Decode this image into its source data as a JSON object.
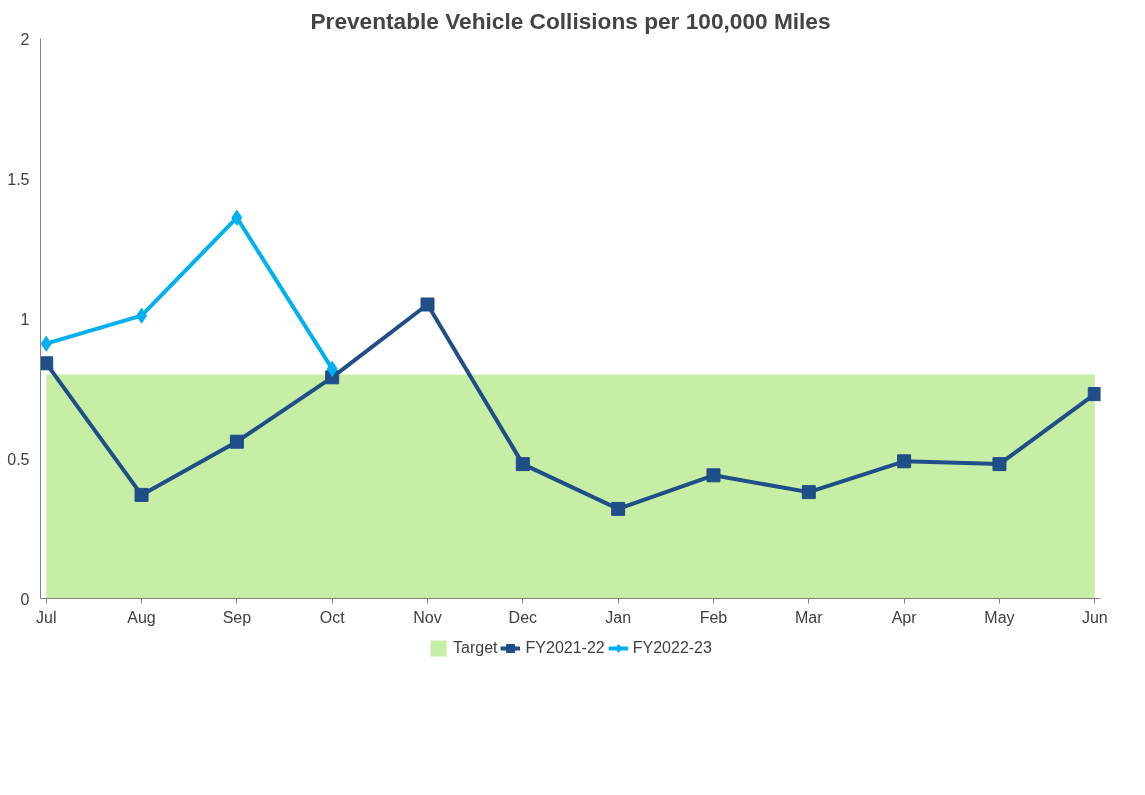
{
  "chart_data": {
    "type": "line",
    "title": "Preventable Vehicle Collisions per 100,000 Miles",
    "categories": [
      "Jul",
      "Aug",
      "Sep",
      "Oct",
      "Nov",
      "Dec",
      "Jan",
      "Feb",
      "Mar",
      "Apr",
      "May",
      "Jun"
    ],
    "series": [
      {
        "name": "Target",
        "type": "area",
        "color": "#c6efa5",
        "values": [
          0.8,
          0.8,
          0.8,
          0.8,
          0.8,
          0.8,
          0.8,
          0.8,
          0.8,
          0.8,
          0.8,
          0.8
        ]
      },
      {
        "name": "FY2021-22",
        "marker": "square",
        "color": "#1f4e89",
        "values": [
          0.84,
          0.37,
          0.56,
          0.79,
          1.05,
          0.48,
          0.32,
          0.44,
          0.38,
          0.49,
          0.48,
          0.73
        ]
      },
      {
        "name": "FY2022-23",
        "marker": "diamond",
        "color": "#00b0f0",
        "values": [
          0.91,
          1.01,
          1.36,
          0.82,
          null,
          null,
          null,
          null,
          null,
          null,
          null,
          null
        ]
      }
    ],
    "ylim": [
      0,
      2
    ],
    "yticks": [
      0,
      0.5,
      1,
      1.5,
      2
    ],
    "grid": false,
    "legend": "bottom",
    "line_style": "solid"
  }
}
